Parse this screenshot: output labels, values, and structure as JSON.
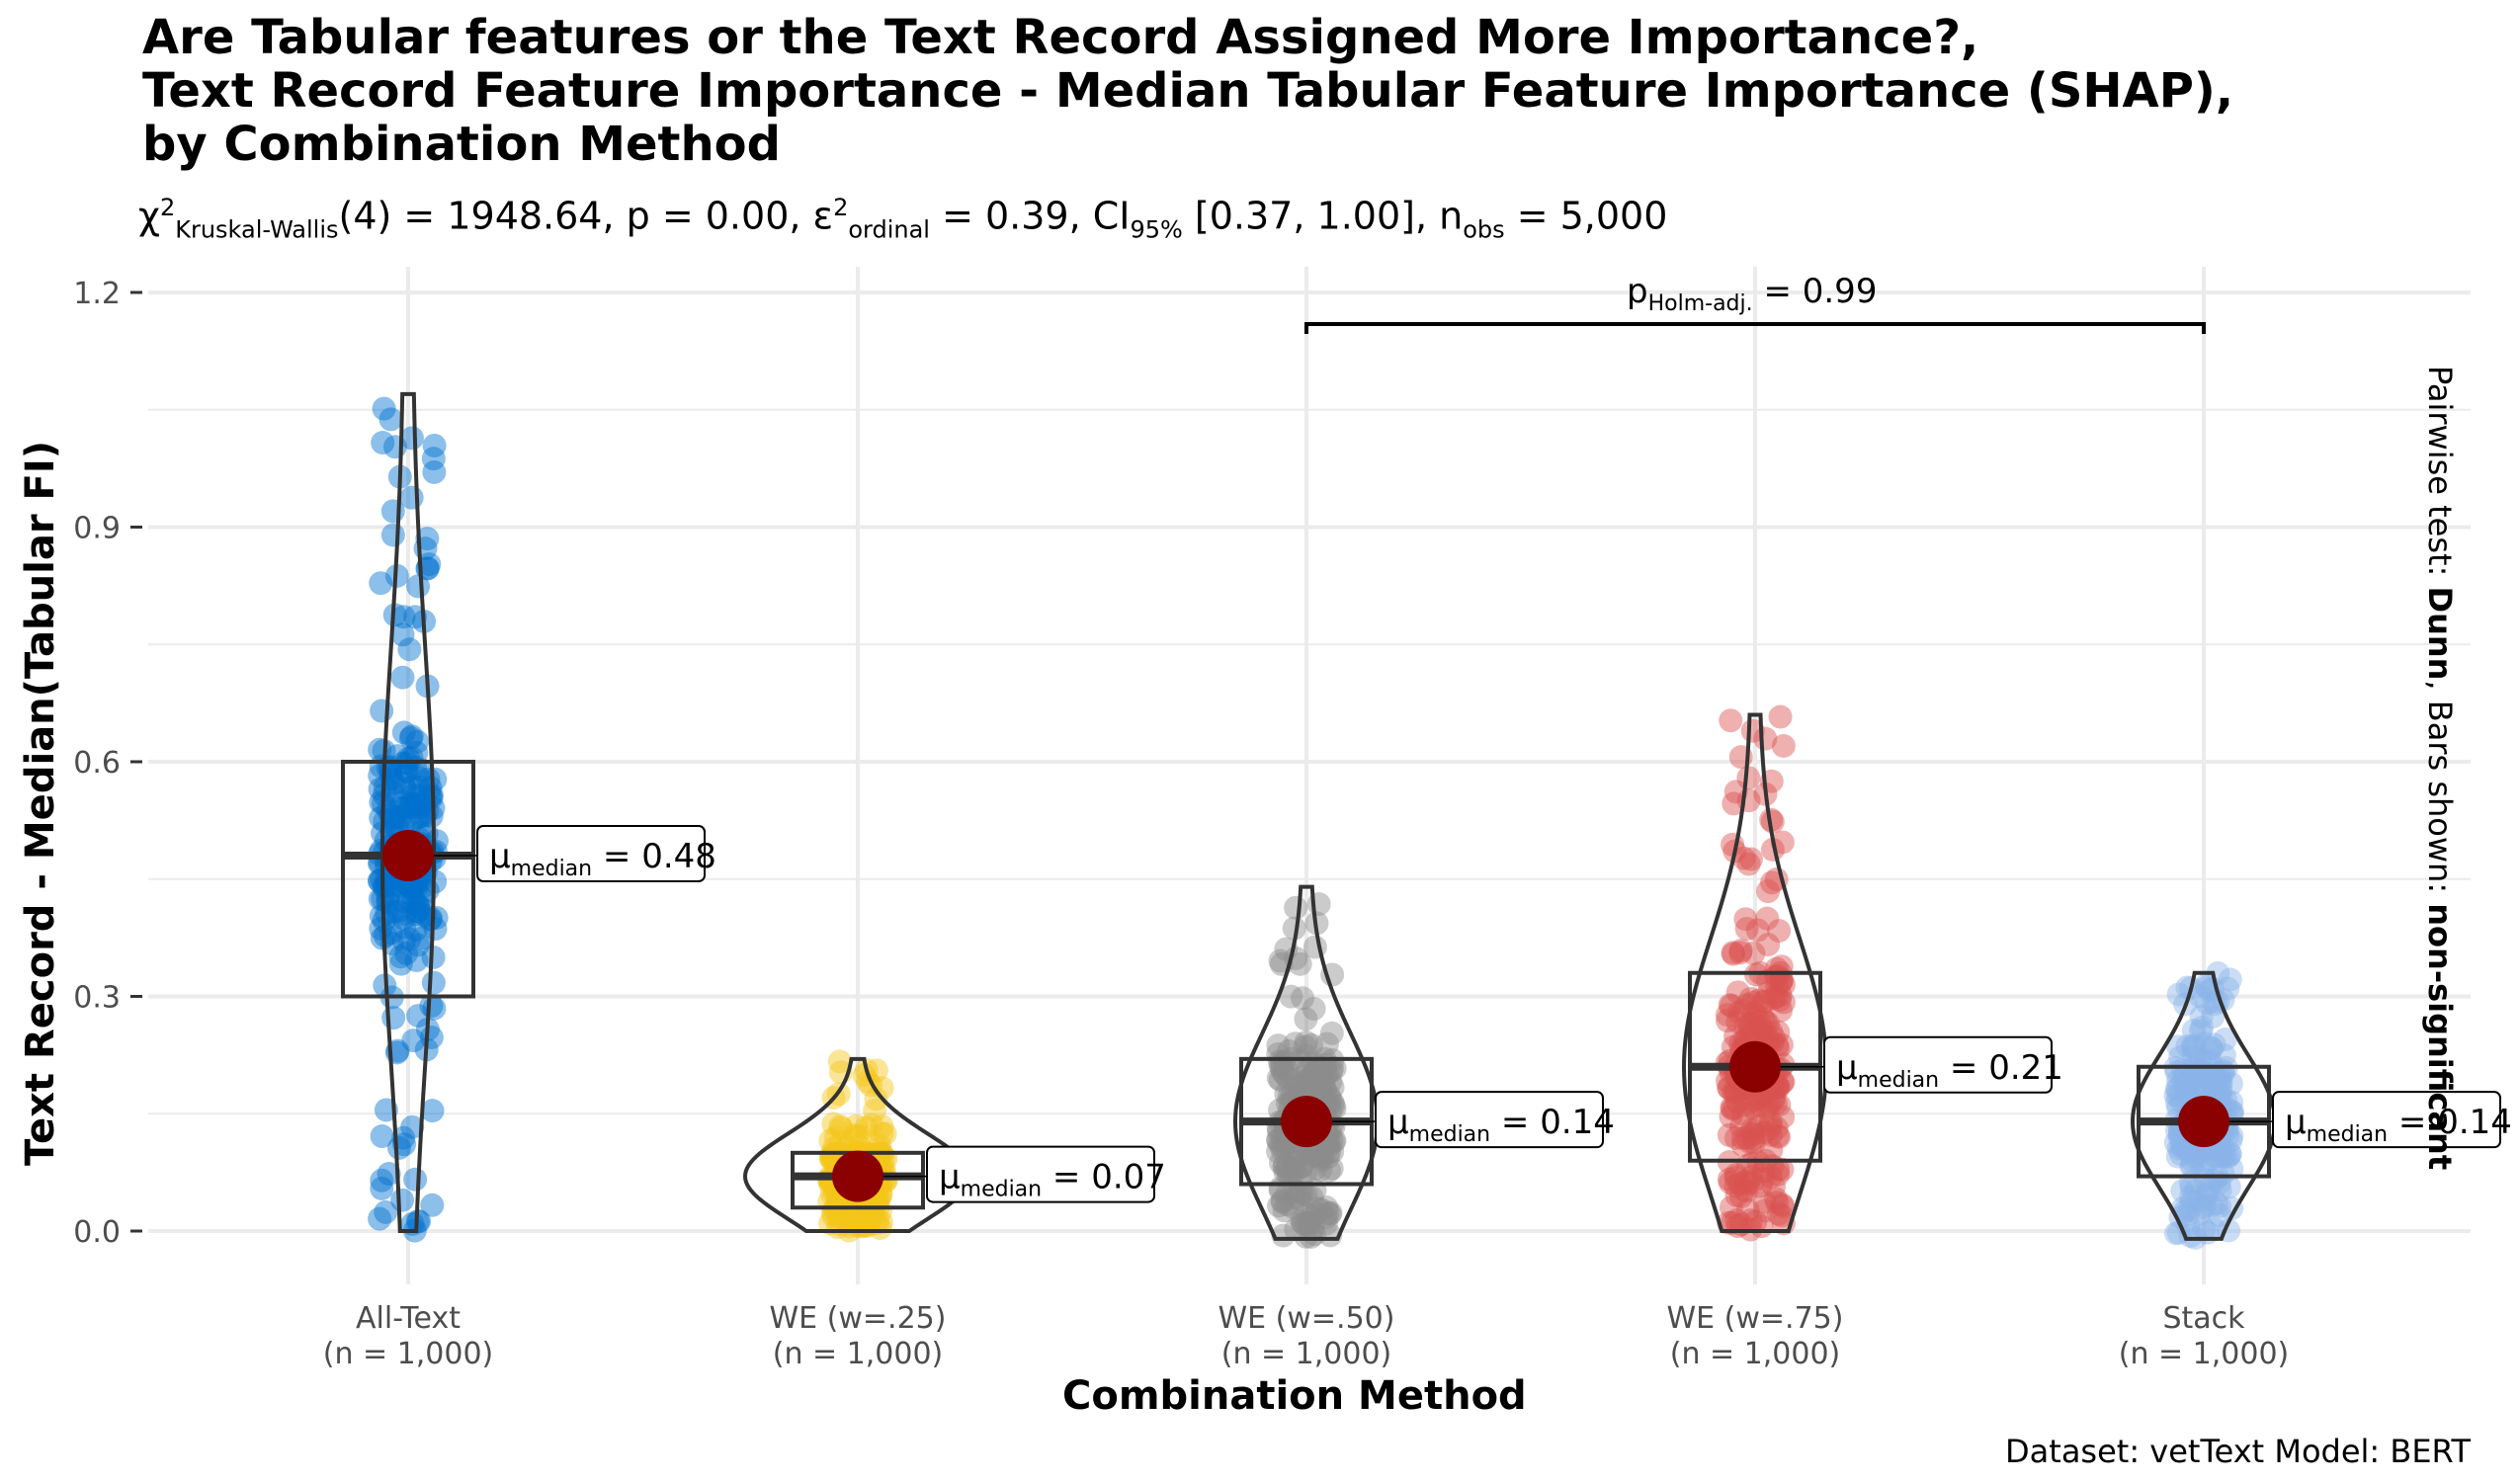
{
  "title": {
    "line1": "Are Tabular features or the Text Record Assigned More Importance?,",
    "line2": "Text Record Feature Importance - Median Tabular Feature Importance (SHAP),",
    "line3": "by Combination Method"
  },
  "stats": {
    "chi_symbol": "χ",
    "chi_sup": "2",
    "test_sub": "Kruskal-Wallis",
    "df_and_stat": "(4) = 1948.64, p = 0.00, ",
    "eps_symbol": "ε",
    "eps_sup": "2",
    "eps_sub": "ordinal",
    "eps_value": " = 0.39, CI",
    "ci_sub": "95%",
    "ci_value": " [0.37, 1.00], n",
    "n_sub": "obs",
    "n_value": " = 5,000"
  },
  "side_label": {
    "prefix": "Pairwise test: ",
    "test": "Dunn",
    "middle": ", Bars shown: ",
    "shown": "non-significant"
  },
  "caption": "Dataset: vetText Model:  BERT",
  "colors": {
    "median_dot": "#8B0000",
    "grid": "#EBEBEB",
    "outline": "#333333"
  },
  "chart_data": {
    "type": "violin-box",
    "title": "Are Tabular features or the Text Record Assigned More Importance?, Text Record Feature Importance - Median Tabular Feature Importance (SHAP), by Combination Method",
    "xlabel": "Combination Method",
    "ylabel": "Text Record - Median(Tabular FI)",
    "ylim": [
      -0.05,
      1.2
    ],
    "yticks": [
      0.0,
      0.3,
      0.6,
      0.9,
      1.2
    ],
    "ytick_labels": [
      "0.0",
      "0.3",
      "0.6",
      "0.9",
      "1.2"
    ],
    "grid": true,
    "groups": [
      {
        "label": "All-Text",
        "n_label": "(n = 1,000)",
        "color": "#0072CE",
        "median": 0.48,
        "q1": 0.3,
        "q3": 0.6,
        "min": 0.0,
        "max": 1.07,
        "median_label": "μ̂median = 0.48",
        "median_label_prefix": "μ",
        "median_label_sub": "median",
        "median_label_value": " = 0.48"
      },
      {
        "label": "WE (w=.25)",
        "n_label": "(n = 1,000)",
        "color": "#F5C518",
        "median": 0.07,
        "q1": 0.03,
        "q3": 0.1,
        "min": 0.0,
        "max": 0.22,
        "median_label_prefix": "μ",
        "median_label_sub": "median",
        "median_label_value": " = 0.07"
      },
      {
        "label": "WE (w=.50)",
        "n_label": "(n = 1,000)",
        "color": "#8C8C8C",
        "median": 0.14,
        "q1": 0.06,
        "q3": 0.22,
        "min": -0.01,
        "max": 0.44,
        "median_label_prefix": "μ",
        "median_label_sub": "median",
        "median_label_value": " = 0.14"
      },
      {
        "label": "WE (w=.75)",
        "n_label": "(n = 1,000)",
        "color": "#D9534F",
        "median": 0.21,
        "q1": 0.09,
        "q3": 0.33,
        "min": 0.0,
        "max": 0.66,
        "median_label_prefix": "μ",
        "median_label_sub": "median",
        "median_label_value": " = 0.21"
      },
      {
        "label": "Stack",
        "n_label": "(n = 1,000)",
        "color": "#8AB4E8",
        "median": 0.14,
        "q1": 0.07,
        "q3": 0.21,
        "min": -0.01,
        "max": 0.33,
        "median_label_prefix": "μ",
        "median_label_sub": "median",
        "median_label_value": " = 0.14"
      }
    ],
    "pairwise": [
      {
        "from": "WE (w=.50)",
        "to": "Stack",
        "label_prefix": "p",
        "label_sub": "Holm-adj.",
        "label_value": " = 0.99"
      }
    ]
  }
}
